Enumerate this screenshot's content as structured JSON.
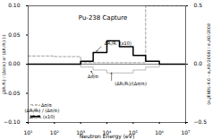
{
  "chart_data": {
    "type": "step",
    "title": "Pu-238 Capture",
    "xlabel": "Neutron Energy (eV)",
    "ylabel": "(ΔRᵢ/Rᵢ) / (Δσ/σᵢ) or (ΔRᵢ/Rᵢ) (-)",
    "y2label": "(σᵢ,JENDL-4.0 - σᵢ,AD/2008) / σᵢ,AD/2008",
    "log": "x",
    "grid": false,
    "legend": "lower left",
    "xlim": [
      10,
      10000000
    ],
    "ylim": [
      -0.1,
      0.1
    ],
    "y2lim": [
      -0.5,
      0.5
    ],
    "xticks": [
      {
        "value": 10,
        "label": "10¹"
      },
      {
        "value": 100,
        "label": "10²"
      },
      {
        "value": 1000,
        "label": "10³"
      },
      {
        "value": 10000,
        "label": "10⁴"
      },
      {
        "value": 100000,
        "label": "10⁵"
      },
      {
        "value": 1000000,
        "label": "10⁶"
      },
      {
        "value": 10000000,
        "label": "10⁷"
      }
    ],
    "yticks": [
      {
        "value": -0.1,
        "label": "−0.10"
      },
      {
        "value": -0.05,
        "label": "−0.05"
      },
      {
        "value": 0.0,
        "label": "0.00"
      },
      {
        "value": 0.05,
        "label": "0.05"
      },
      {
        "value": 0.1,
        "label": "0.10"
      }
    ],
    "y2ticks": [
      {
        "value": -0.5,
        "label": "−0.5"
      },
      {
        "value": 0.0,
        "label": "0.0"
      },
      0.5
    ],
    "bins": [
      10,
      100,
      300,
      1000,
      3000,
      10000,
      30000,
      100000,
      300000,
      1000000,
      3000000,
      10000000
    ],
    "series": [
      {
        "name": "- - - Δσ/σᵢ",
        "color": "#888888",
        "line_style": "dashed",
        "axis": "y2",
        "values": [
          0.07,
          0.065,
          0.065,
          0.013,
          0.013,
          0.013,
          0.013,
          0.013,
          0.5,
          0.5,
          0.5
        ]
      },
      {
        "name": "(ΔRᵢ/Rᵢ) / (Δσ/σᵢ)",
        "color": "#aaaaaa",
        "line_style": "solid",
        "values": [
          0.0,
          0.0,
          0.0,
          -0.005,
          -0.01,
          -0.015,
          -0.015,
          -0.01,
          -0.005,
          0.0,
          0.0
        ]
      },
      {
        "name": "ΔRᵢ/Rᵢ (x10)",
        "color": "#000000",
        "line_style": "solid",
        "values": [
          0.0,
          0.0,
          0.0,
          0.005,
          0.02,
          0.04,
          0.03,
          0.015,
          0.005,
          0.0,
          0.0
        ]
      }
    ],
    "hlines": [
      0
    ],
    "annotations": [
      {
        "text": "ΔRᵢ/Rᵢ  (x10)",
        "x": 8000,
        "y": 0.033
      },
      {
        "text": "Δσ/σᵢ",
        "x": 3000,
        "y": -0.018
      },
      {
        "text": "(ΔRᵢ/Rᵢ)/(Δσ/σᵢ)",
        "x": 20000,
        "y": -0.03
      }
    ],
    "arrows": [
      {
        "x1": 6000,
        "y1": 0.03,
        "x2": 4000,
        "y2": 0.022
      },
      {
        "x1": 3000,
        "y1": -0.018,
        "x2": 2500,
        "y2": -0.012
      },
      {
        "x1": 15000,
        "y1": -0.028,
        "x2": 15000,
        "y2": -0.015
      }
    ]
  }
}
